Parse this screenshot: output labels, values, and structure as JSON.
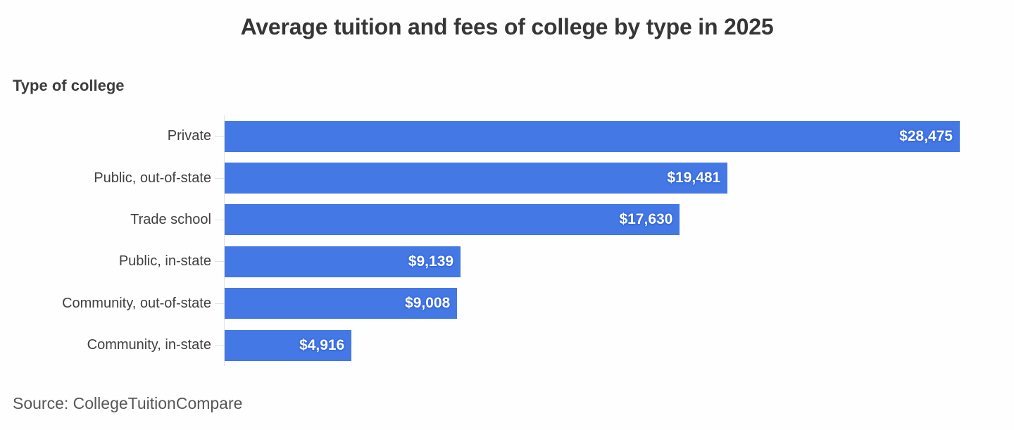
{
  "title": "Average tuition and fees of college by type in 2025",
  "axis_title": "Type of college",
  "source": "Source: CollegeTuitionCompare",
  "colors": {
    "bar": "#4478e4",
    "bar_glow": "#3566da",
    "title_text": "#363636",
    "category_text": "#404040",
    "source_text": "#565656",
    "axis_line": "#e2e2e2",
    "background": "#fefefe",
    "value_label_text": "#ffffff"
  },
  "chart_data": {
    "type": "bar",
    "orientation": "horizontal",
    "title": "Average tuition and fees of college by type in 2025",
    "category_axis_label": "Type of college",
    "categories": [
      "Private",
      "Public, out-of-state",
      "Trade school",
      "Public, in-state",
      "Community, out-of-state",
      "Community, in-state"
    ],
    "values": [
      28475,
      19481,
      17630,
      9139,
      9008,
      4916
    ],
    "value_labels": [
      "$28,475",
      "$19,481",
      "$17,630",
      "$9,139",
      "$9,008",
      "$4,916"
    ],
    "value_format": "$#,###",
    "xlim": [
      0,
      28475
    ],
    "grid": false,
    "legend": false,
    "value_label_position": "inside-end",
    "source": "Source: CollegeTuitionCompare"
  }
}
